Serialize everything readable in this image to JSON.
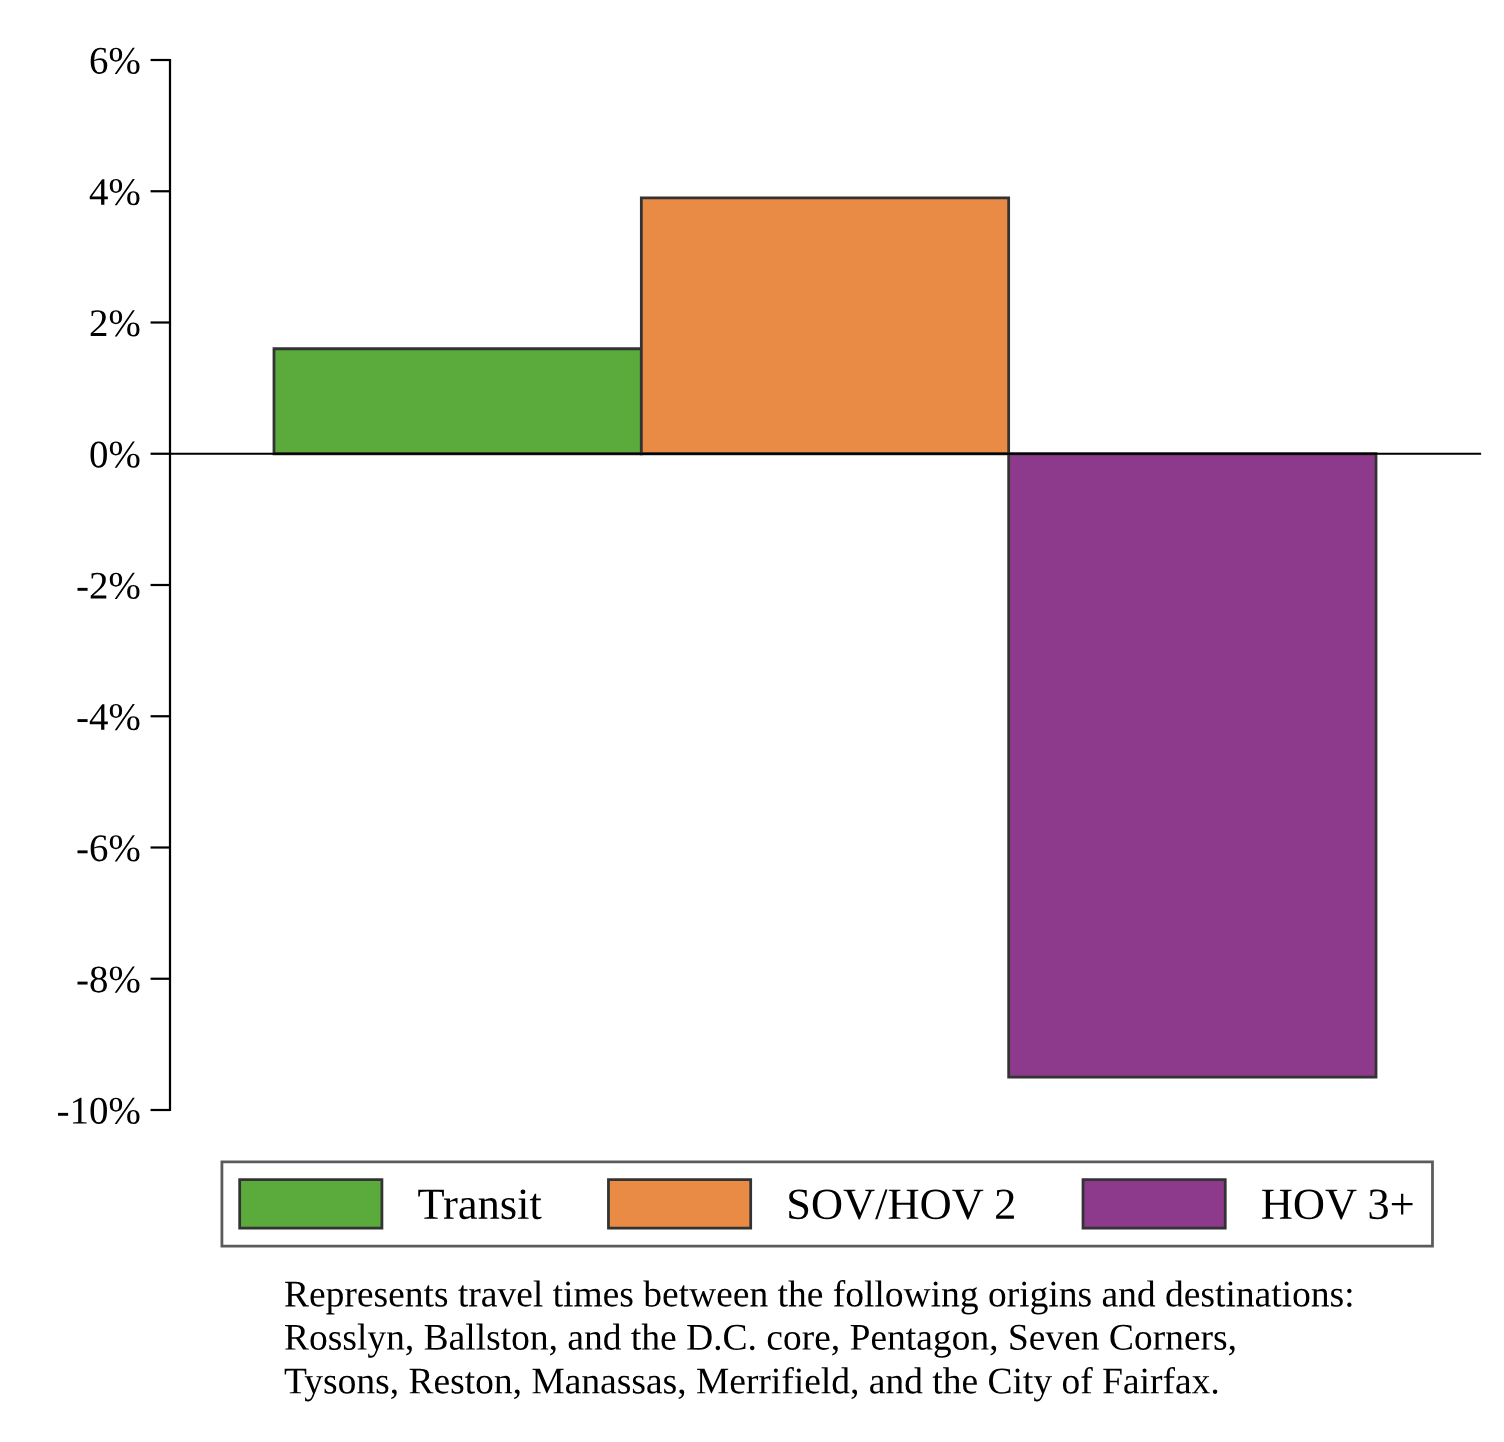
{
  "chart_data": {
    "type": "bar",
    "categories": [
      null
    ],
    "series": [
      {
        "name": "Transit",
        "color": "#5aab3c",
        "values": [
          1.6
        ]
      },
      {
        "name": "SOV/HOV 2",
        "color": "#e98b45",
        "values": [
          3.9
        ]
      },
      {
        "name": "HOV 3+",
        "color": "#8e3a8c",
        "values": [
          -9.5
        ]
      }
    ],
    "ylim": [
      -10,
      6
    ],
    "yticks": [
      {
        "value": -10,
        "label": "-10%"
      },
      {
        "value": -8,
        "label": "-8%"
      },
      {
        "value": -6,
        "label": "-6%"
      },
      {
        "value": -4,
        "label": "-4%"
      },
      {
        "value": -2,
        "label": "-2%"
      },
      {
        "value": 0,
        "label": "0%"
      },
      {
        "value": 2,
        "label": "2%"
      },
      {
        "value": 4,
        "label": "4%"
      },
      {
        "value": 6,
        "label": "6%"
      }
    ],
    "tick_labels": "y",
    "legend": "bottom",
    "annotations": [
      "Represents travel times between the following origins and destinations:\nRosslyn, Ballston, and the D.C. core, Pentagon, Seven Corners,\nTysons, Reston, Manassas, Merrifield, and the City of Fairfax."
    ]
  }
}
